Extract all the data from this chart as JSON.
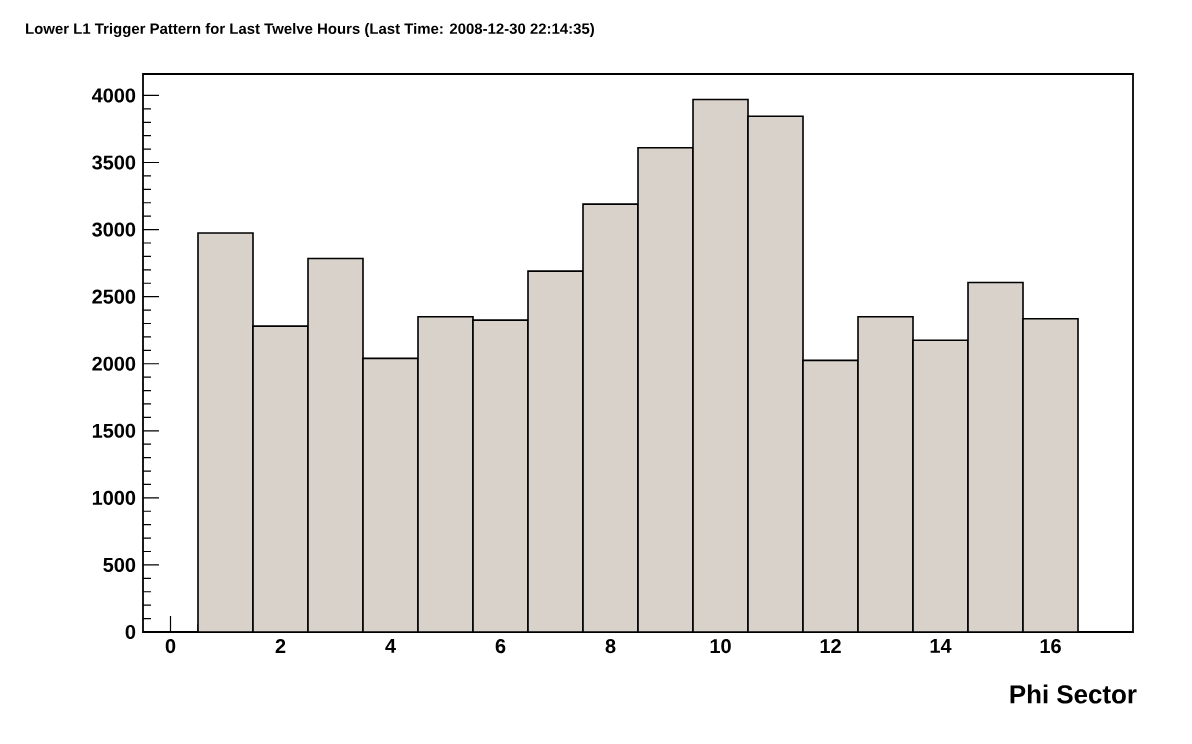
{
  "chart_data": {
    "type": "histogram",
    "title": "Lower L1 Trigger Pattern for Last Twelve Hours (Last Time: 2008-12-30 22:14:35)",
    "xlabel": "Phi Sector",
    "bins": [
      0.5,
      1.5,
      2.5,
      3.5,
      4.5,
      5.5,
      6.5,
      7.5,
      8.5,
      9.5,
      10.5,
      11.5,
      12.5,
      13.5,
      14.5,
      15.5,
      16.5
    ],
    "values": [
      2975,
      2280,
      2785,
      2040,
      2350,
      2325,
      2690,
      3190,
      3610,
      3970,
      3845,
      2025,
      2350,
      2175,
      2605,
      2335
    ],
    "color": "#d9d2cb",
    "xlim": [
      -0.5,
      17.5
    ],
    "ylim": [
      0,
      4160
    ],
    "xticks": [
      0,
      2,
      4,
      6,
      8,
      10,
      12,
      14,
      16
    ],
    "yticks": [
      0,
      500,
      1000,
      1500,
      2000,
      2500,
      3000,
      3500,
      4000
    ]
  }
}
